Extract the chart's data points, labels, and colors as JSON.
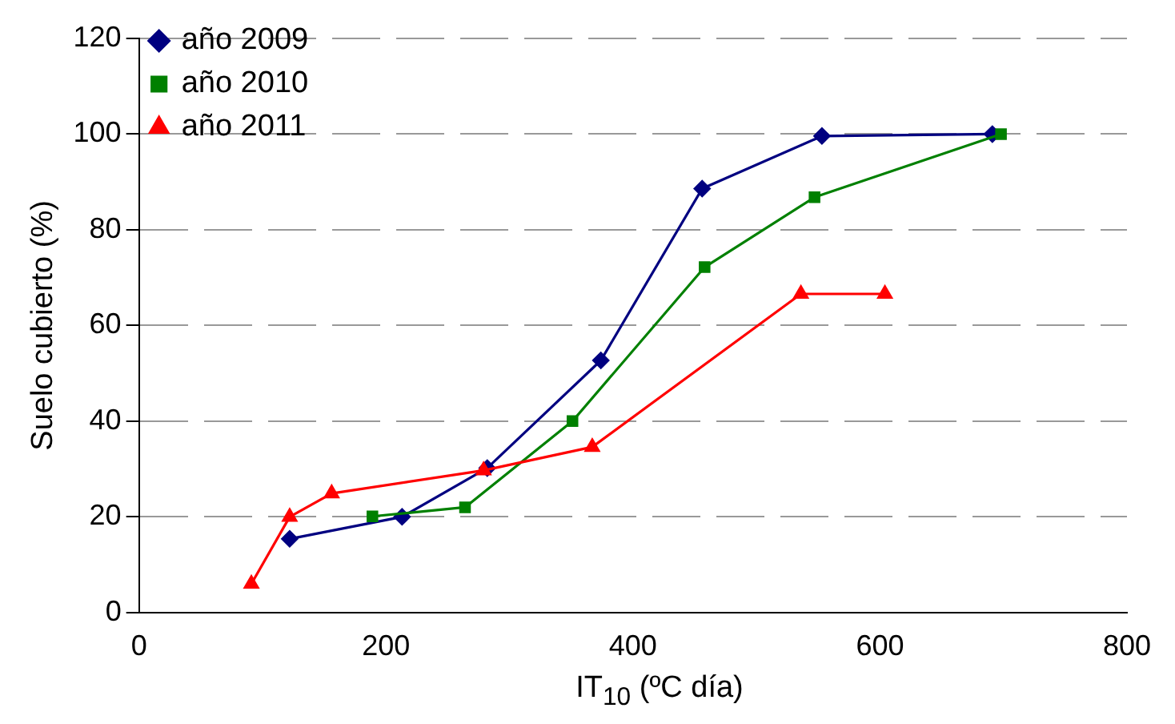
{
  "chart_data": {
    "type": "line",
    "xlabel": "IT$_{10}$ (ºC día)",
    "ylabel": "Suelo cubierto (%)",
    "xlim": [
      0,
      800
    ],
    "xticks": [
      0,
      200,
      400,
      600,
      800
    ],
    "ylim": [
      0,
      120
    ],
    "yticks": [
      0,
      20,
      40,
      60,
      80,
      100,
      120
    ],
    "grid": "y",
    "legend": "top left",
    "series": [
      {
        "name": "año 2009",
        "color": "#000080",
        "marker": "diamond",
        "x": [
          122,
          213,
          282,
          374,
          456,
          553,
          691
        ],
        "values": [
          15.4,
          20,
          30.2,
          52.7,
          88.6,
          99.6,
          100
        ]
      },
      {
        "name": "año 2010",
        "color": "#008000",
        "marker": "square",
        "x": [
          189,
          264,
          351,
          458,
          547,
          698
        ],
        "values": [
          20.1,
          22,
          40,
          72.2,
          86.8,
          100
        ]
      },
      {
        "name": "año 2011",
        "color": "#ff0000",
        "marker": "triangle",
        "x": [
          91,
          122,
          156,
          279,
          367,
          536,
          604
        ],
        "values": [
          6,
          20,
          24.9,
          29.7,
          34.6,
          66.6,
          66.6
        ]
      }
    ]
  }
}
